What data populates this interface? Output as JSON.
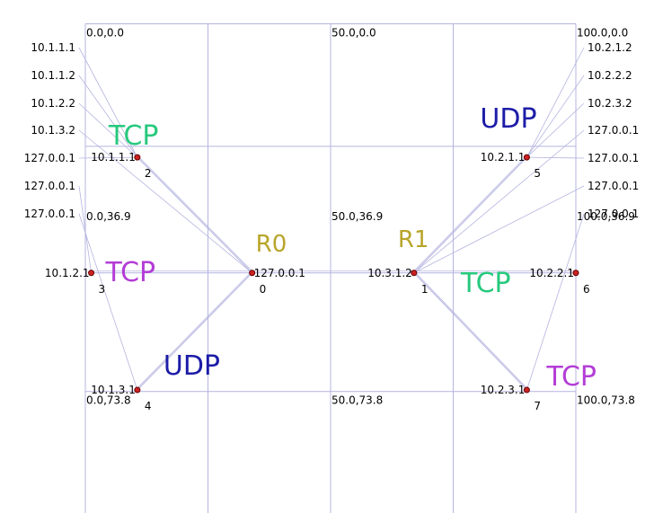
{
  "colors": {
    "grid": "#b4b4e0",
    "link": "#b4b4e0",
    "node_fill": "#cc2222",
    "node_stroke": "#660000",
    "router": "#b8a52a",
    "tcp_green": "#27c97d",
    "tcp_purple": "#b33dd6",
    "udp_blue": "#1c1ca8"
  },
  "grid_labels": [
    {
      "text": "0.0,0.0",
      "x": 0,
      "y": 0
    },
    {
      "text": "50.0,0.0",
      "x": 50,
      "y": 0
    },
    {
      "text": "100.0,0.0",
      "x": 100,
      "y": 0
    },
    {
      "text": "0.0,36.9",
      "x": 0,
      "y": 36.9
    },
    {
      "text": "50.0,36.9",
      "x": 50,
      "y": 36.9
    },
    {
      "text": "100.0,36.9",
      "x": 100,
      "y": 36.9
    },
    {
      "text": "0.0,73.8",
      "x": 0,
      "y": 73.8
    },
    {
      "text": "50.0,73.8",
      "x": 50,
      "y": 73.8
    },
    {
      "text": "100.0,73.8",
      "x": 100,
      "y": 73.8
    }
  ],
  "nodes": [
    {
      "id": "0",
      "address": "127.0.0.1",
      "x": 34.0,
      "y": 50.0
    },
    {
      "id": "1",
      "address": "10.3.1.2",
      "x": 67.0,
      "y": 50.0
    },
    {
      "id": "2",
      "address": "10.1.1.1",
      "x": 10.6,
      "y": 26.8
    },
    {
      "id": "3",
      "address": "10.1.2.1",
      "x": 1.2,
      "y": 50.0
    },
    {
      "id": "4",
      "address": "10.1.3.1",
      "x": 10.6,
      "y": 73.5
    },
    {
      "id": "5",
      "address": "10.2.1.1",
      "x": 90.0,
      "y": 26.8
    },
    {
      "id": "6",
      "address": "10.2.2.1",
      "x": 100.0,
      "y": 50.0
    },
    {
      "id": "7",
      "address": "10.2.3.1",
      "x": 90.0,
      "y": 73.5
    }
  ],
  "left_column": [
    "10.1.1.1",
    "10.1.1.2",
    "10.1.2.2",
    "10.1.3.2",
    "127.0.0.1",
    "127.0.0.1",
    "127.0.0.1"
  ],
  "right_column": [
    "10.2.1.2",
    "10.2.2.2",
    "10.2.3.2",
    "127.0.0.1",
    "127.0.0.1",
    "127.0.0.1",
    "127.0.0.1"
  ],
  "links": [
    [
      "0",
      "1"
    ],
    [
      "0",
      "2"
    ],
    [
      "0",
      "3"
    ],
    [
      "0",
      "4"
    ],
    [
      "1",
      "5"
    ],
    [
      "1",
      "6"
    ],
    [
      "1",
      "7"
    ]
  ],
  "router_labels": [
    {
      "text": "R0",
      "node": "0"
    },
    {
      "text": "R1",
      "node": "1"
    }
  ],
  "protocol_labels": [
    {
      "text": "TCP",
      "node": "2",
      "color": "tcp_green"
    },
    {
      "text": "TCP",
      "node": "3",
      "color": "tcp_purple"
    },
    {
      "text": "UDP",
      "node": "4",
      "color": "udp_blue"
    },
    {
      "text": "UDP",
      "node": "5",
      "color": "udp_blue"
    },
    {
      "text": "TCP",
      "node": "6",
      "color": "tcp_green"
    },
    {
      "text": "TCP",
      "node": "7",
      "color": "tcp_purple"
    }
  ]
}
